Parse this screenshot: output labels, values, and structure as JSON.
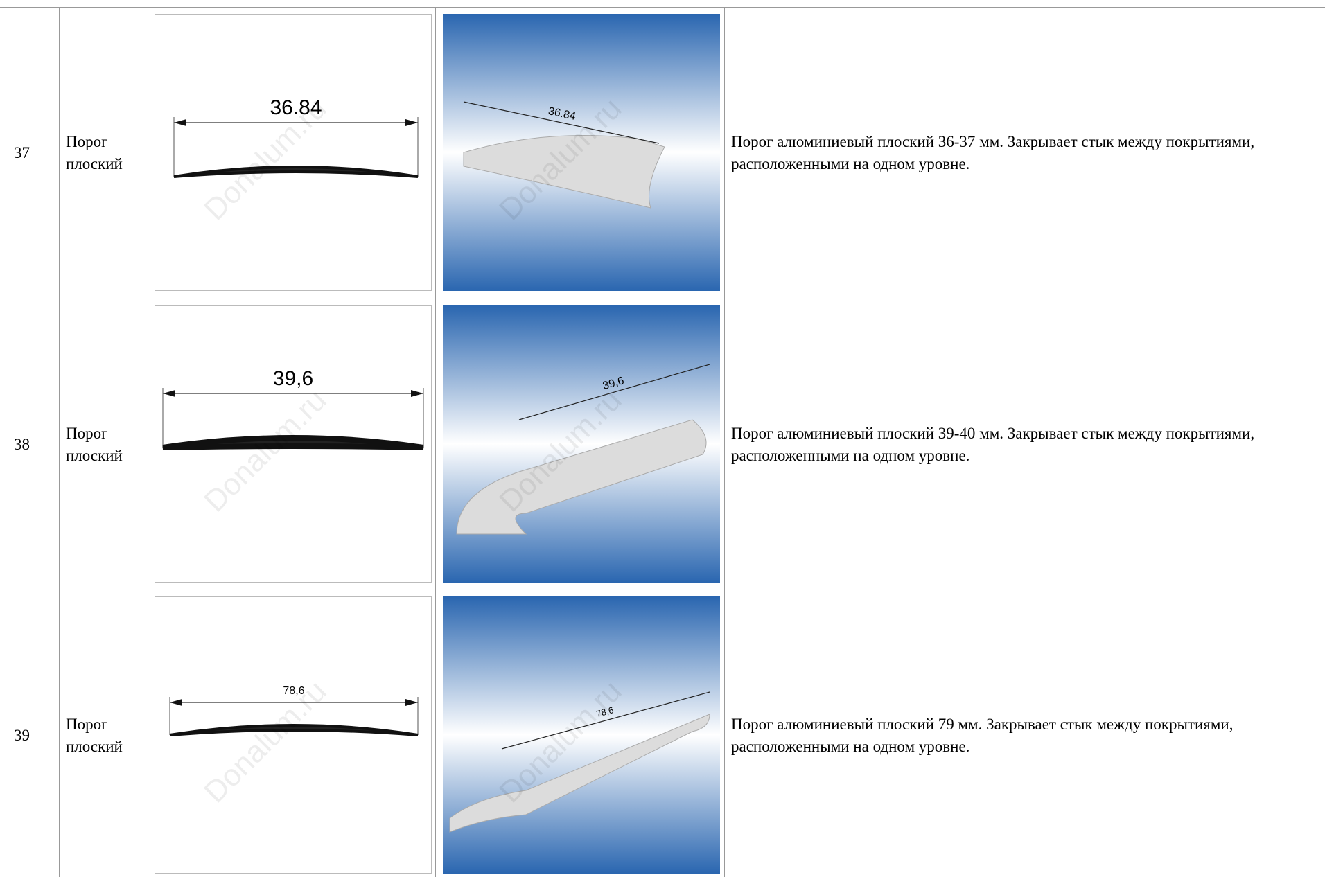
{
  "watermark": "Donalum.ru",
  "rows": [
    {
      "number": "37",
      "name": "Порог плоский",
      "dimension": "36.84",
      "description": "Порог алюминиевый плоский 36-37 мм. Закрывает стык между покрытиями, расположенными на одном уровне."
    },
    {
      "number": "38",
      "name": "Порог плоский",
      "dimension": "39,6",
      "description": "Порог алюминиевый плоский 39-40 мм. Закрывает стык между покрытиями, расположенными на одном уровне."
    },
    {
      "number": "39",
      "name": "Порог плоский",
      "dimension": "78,6",
      "description": "Порог алюминиевый плоский 79 мм. Закрывает стык между покрытиями, расположенными на одном уровне."
    }
  ]
}
